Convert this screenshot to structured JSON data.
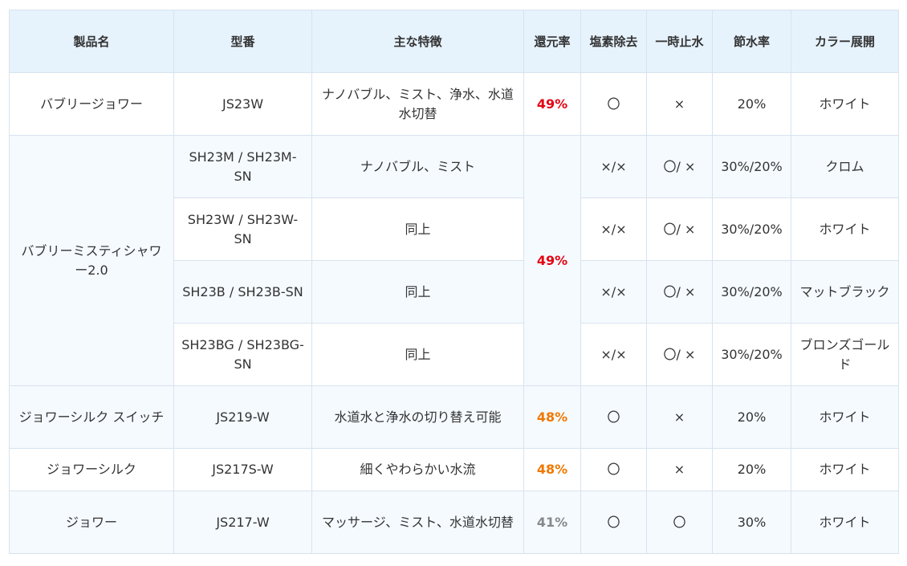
{
  "headers": [
    "製品名",
    "型番",
    "主な特徴",
    "還元率",
    "塩素除去",
    "一時止水",
    "節水率",
    "カラー展開"
  ],
  "rows": [
    {
      "product": "バブリージョワー",
      "model": "JS23W",
      "feature": "ナノバブル、ミスト、浄水、水道水切替",
      "rate": "49%",
      "chlorine": "〇",
      "stop": "×",
      "saving": "20%",
      "color": "ホワイト"
    },
    {
      "product": "バブリーミスティシャワー2.0",
      "rate": "49%",
      "variants": [
        {
          "model": "SH23M / SH23M-SN",
          "feature": "ナノバブル、ミスト",
          "chlorine": "×/×",
          "stop": "〇/ ×",
          "saving": "30%/20%",
          "color": "クロム"
        },
        {
          "model": "SH23W / SH23W-SN",
          "feature": "同上",
          "chlorine": "×/×",
          "stop": "〇/ ×",
          "saving": "30%/20%",
          "color": "ホワイト"
        },
        {
          "model": "SH23B / SH23B-SN",
          "feature": "同上",
          "chlorine": "×/×",
          "stop": "〇/ ×",
          "saving": "30%/20%",
          "color": "マットブラック"
        },
        {
          "model": "SH23BG / SH23BG-SN",
          "feature": "同上",
          "chlorine": "×/×",
          "stop": "〇/ ×",
          "saving": "30%/20%",
          "color": "ブロンズゴールド"
        }
      ]
    },
    {
      "product": "ジョワーシルク スイッチ",
      "model": "JS219-W",
      "feature": "水道水と浄水の切り替え可能",
      "rate": "48%",
      "chlorine": "〇",
      "stop": "×",
      "saving": "20%",
      "color": "ホワイト"
    },
    {
      "product": "ジョワーシルク",
      "model": "JS217S-W",
      "feature": "細くやわらかい水流",
      "rate": "48%",
      "chlorine": "〇",
      "stop": "×",
      "saving": "20%",
      "color": "ホワイト"
    },
    {
      "product": "ジョワー",
      "model": "JS217-W",
      "feature": "マッサージ、ミスト、水道水切替",
      "rate": "41%",
      "chlorine": "〇",
      "stop": "〇",
      "saving": "30%",
      "color": "ホワイト"
    }
  ],
  "colors": {
    "rate_high": "#e60012",
    "rate_mid": "#f07800",
    "rate_low": "#888888",
    "header_bg": "#e6f2fc",
    "row_alt_bg": "#f5faff",
    "border": "#d7e3ee"
  }
}
